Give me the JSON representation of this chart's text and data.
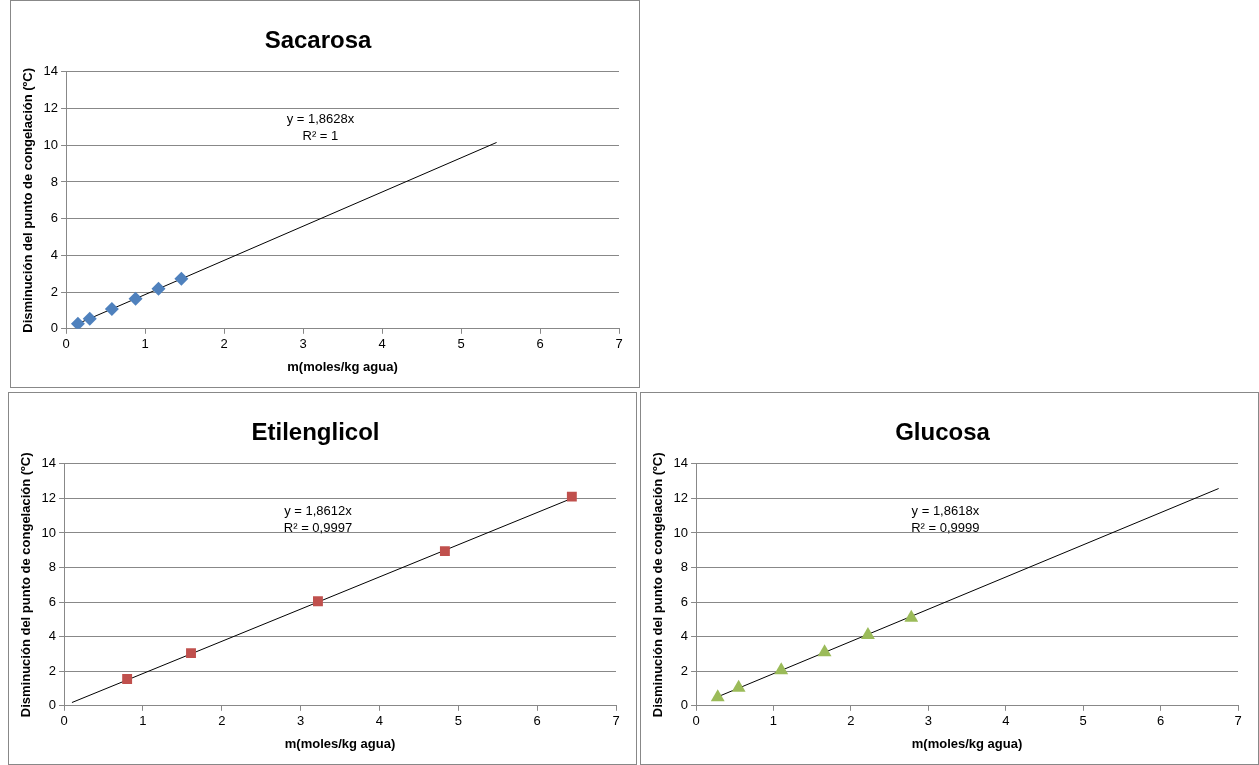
{
  "chart_data": [
    {
      "type": "scatter",
      "title": "Sacarosa",
      "xlabel": "m(moles/kg agua)",
      "ylabel": "Disminución del punto de congelación (ºC)",
      "xlim": [
        0,
        7
      ],
      "xticks": [
        0,
        1,
        2,
        3,
        4,
        5,
        6,
        7
      ],
      "ylim": [
        0,
        14
      ],
      "yticks": [
        0,
        2,
        4,
        6,
        8,
        10,
        12,
        14
      ],
      "grid": "y",
      "annotations": [
        "y = 1,8628x",
        "R² = 1"
      ],
      "series": [
        {
          "type": "scatter",
          "color": "#4f81bd",
          "marker": "diamond",
          "x": [
            0.15,
            0.3,
            0.58,
            0.88,
            1.17,
            1.46
          ],
          "values": [
            0.28,
            0.55,
            1.08,
            1.64,
            2.18,
            2.72
          ]
        },
        {
          "type": "line",
          "color": "#000000",
          "marker": "none",
          "x": [
            0.15,
            5.45
          ],
          "values": [
            0.28,
            10.15
          ]
        }
      ]
    },
    {
      "type": "scatter",
      "title": "Etilenglicol",
      "xlabel": "m(moles/kg agua)",
      "ylabel": "Disminución del punto de congelación (ºC)",
      "xlim": [
        0,
        7
      ],
      "xticks": [
        0,
        1,
        2,
        3,
        4,
        5,
        6,
        7
      ],
      "ylim": [
        0,
        14
      ],
      "yticks": [
        0,
        2,
        4,
        6,
        8,
        10,
        12,
        14
      ],
      "grid": "y",
      "annotations": [
        "y = 1,8612x",
        "R² = 0,9997"
      ],
      "series": [
        {
          "type": "scatter",
          "color": "#c0504d",
          "marker": "square",
          "x": [
            0.8,
            1.61,
            3.22,
            4.83,
            6.44
          ],
          "values": [
            1.55,
            3.05,
            6.05,
            8.95,
            12.1
          ]
        },
        {
          "type": "line",
          "color": "#000000",
          "marker": "none",
          "x": [
            0.1,
            6.44
          ],
          "values": [
            0.19,
            12.0
          ]
        }
      ]
    },
    {
      "type": "scatter",
      "title": "Glucosa",
      "xlabel": "m(moles/kg agua)",
      "ylabel": "Disminución del punto de congelación (ºC)",
      "xlim": [
        0,
        7
      ],
      "xticks": [
        0,
        1,
        2,
        3,
        4,
        5,
        6,
        7
      ],
      "ylim": [
        0,
        14
      ],
      "yticks": [
        0,
        2,
        4,
        6,
        8,
        10,
        12,
        14
      ],
      "grid": "y",
      "annotations": [
        "y = 1,8618x",
        "R² = 0,9999"
      ],
      "series": [
        {
          "type": "scatter",
          "color": "#9bbb59",
          "marker": "triangle",
          "x": [
            0.28,
            0.55,
            1.1,
            1.66,
            2.22,
            2.78
          ],
          "values": [
            0.5,
            1.05,
            2.05,
            3.1,
            4.1,
            5.1
          ]
        },
        {
          "type": "line",
          "color": "#000000",
          "marker": "none",
          "x": [
            0.28,
            6.75
          ],
          "values": [
            0.52,
            12.57
          ]
        }
      ]
    }
  ]
}
